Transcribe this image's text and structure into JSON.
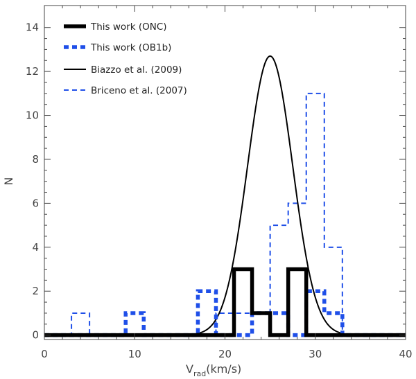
{
  "chart_data": {
    "type": "histogram",
    "title": "",
    "xlabel": "V",
    "xlabel_sub": "rad",
    "xlabel_unit": "(km/s)",
    "ylabel": "N",
    "xlim": [
      0,
      40
    ],
    "ylim": [
      -0.2,
      15
    ],
    "xticks": [
      "0",
      "10",
      "20",
      "30",
      "40"
    ],
    "yticks": [
      "0",
      "2",
      "4",
      "6",
      "8",
      "10",
      "12",
      "14"
    ],
    "grid": false,
    "legend_position": "top-left",
    "colors": {
      "black": "#000000",
      "blue": "#1f4fe8"
    },
    "series": [
      {
        "name": "This work (ONC)",
        "style": "thick-solid-black",
        "bin_width": 2,
        "bin_edges": [
          19,
          21,
          23,
          25,
          27,
          29,
          31
        ],
        "counts": [
          0,
          3,
          1,
          0,
          3,
          0
        ]
      },
      {
        "name": "This work (OB1b)",
        "style": "thick-dashed-blue",
        "bin_width": 2,
        "bin_edges": [
          5,
          7,
          9,
          11,
          13,
          15,
          17,
          19,
          21,
          23,
          25,
          27,
          29,
          31,
          33,
          35
        ],
        "counts": [
          0,
          0,
          1,
          0,
          0,
          0,
          2,
          0,
          0,
          1,
          1,
          0,
          2,
          1,
          0
        ]
      },
      {
        "name": "Biazzo et al. (2009)",
        "style": "thin-solid-black",
        "function": "gaussian",
        "amplitude": 12.7,
        "mean": 25.0,
        "sigma": 2.5
      },
      {
        "name": "Briceno et al. (2007)",
        "style": "thin-dashed-blue",
        "bin_width": 2,
        "bin_edges": [
          3,
          5,
          7,
          9,
          11,
          13,
          15,
          17,
          19,
          21,
          23,
          25,
          27,
          29,
          31,
          33,
          35
        ],
        "counts": [
          1,
          0,
          0,
          0,
          0,
          0,
          0,
          0,
          1,
          1,
          1,
          5,
          6,
          11,
          4,
          0
        ]
      }
    ]
  }
}
